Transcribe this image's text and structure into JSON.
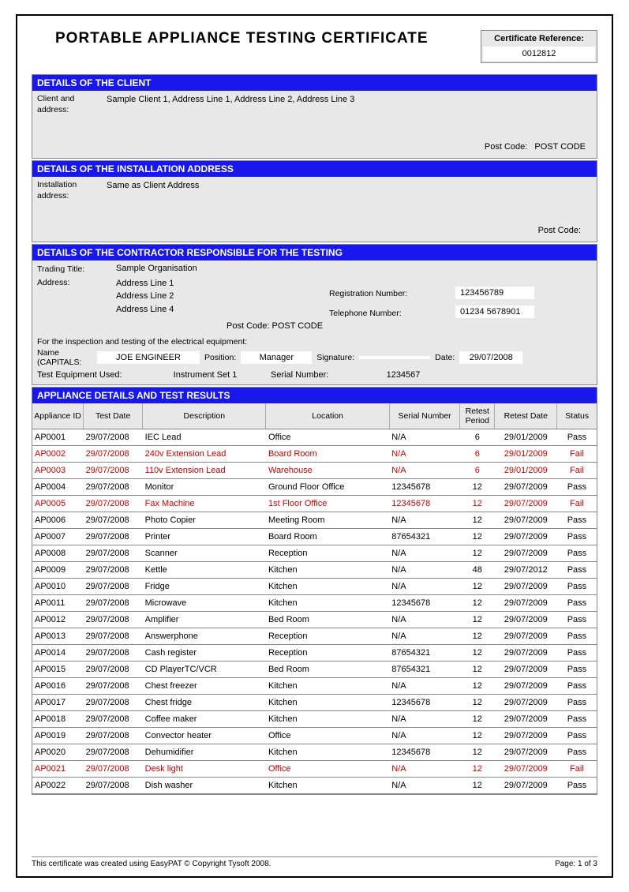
{
  "title": "PORTABLE APPLIANCE TESTING CERTIFICATE",
  "cert_ref": {
    "label": "Certificate Reference:",
    "value": "0012812"
  },
  "sections": {
    "client": {
      "title": "DETAILS OF THE CLIENT",
      "label": "Client and address:",
      "value": "Sample Client 1, Address Line 1, Address Line 2, Address Line 3",
      "postcode_label": "Post Code:",
      "postcode_value": "POST CODE"
    },
    "install": {
      "title": "DETAILS OF THE INSTALLATION ADDRESS",
      "label": "Installation address:",
      "value": "Same as Client Address",
      "postcode_label": "Post Code:",
      "postcode_value": ""
    },
    "contractor": {
      "title": "DETAILS OF THE CONTRACTOR RESPONSIBLE FOR THE TESTING",
      "trading_label": "Trading Title:",
      "trading_value": "Sample Organisation",
      "address_label": "Address:",
      "addr1": "Address Line 1",
      "addr2": "Address Line 2",
      "addr3": "Address Line 4",
      "postcode_label": "Post Code:",
      "postcode_value": "POST CODE",
      "reg_label": "Registration Number:",
      "reg_value": "123456789",
      "tel_label": "Telephone Number:",
      "tel_value": "01234 5678901",
      "insp_text": "For the inspection and testing of the electrical equipment:",
      "name_label": "Name (CAPITALS:",
      "name_value": "JOE ENGINEER",
      "position_label": "Position:",
      "position_value": "Manager",
      "signature_label": "Signature:",
      "signature_value": "",
      "date_label": "Date:",
      "date_value": "29/07/2008",
      "equip_label": "Test Equipment Used:",
      "equip_value": "Instrument Set 1",
      "serial_label": "Serial Number:",
      "serial_value": "1234567"
    },
    "results": {
      "title": "APPLIANCE DETAILS AND TEST RESULTS",
      "columns": [
        "Appliance ID",
        "Test Date",
        "Description",
        "Location",
        "Serial Number",
        "Retest Period",
        "Retest Date",
        "Status"
      ],
      "rows": [
        {
          "id": "AP0001",
          "date": "29/07/2008",
          "desc": "IEC Lead",
          "loc": "Office",
          "serial": "N/A",
          "retest": "6",
          "rdate": "29/01/2009",
          "status": "Pass",
          "fail": false
        },
        {
          "id": "AP0002",
          "date": "29/07/2008",
          "desc": "240v Extension Lead",
          "loc": "Board Room",
          "serial": "N/A",
          "retest": "6",
          "rdate": "29/01/2009",
          "status": "Fail",
          "fail": true
        },
        {
          "id": "AP0003",
          "date": "29/07/2008",
          "desc": "110v Extension Lead",
          "loc": "Warehouse",
          "serial": "N/A",
          "retest": "6",
          "rdate": "29/01/2009",
          "status": "Fail",
          "fail": true
        },
        {
          "id": "AP0004",
          "date": "29/07/2008",
          "desc": "Monitor",
          "loc": "Ground Floor Office",
          "serial": "12345678",
          "retest": "12",
          "rdate": "29/07/2009",
          "status": "Pass",
          "fail": false
        },
        {
          "id": "AP0005",
          "date": "29/07/2008",
          "desc": "Fax Machine",
          "loc": "1st Floor Office",
          "serial": "12345678",
          "retest": "12",
          "rdate": "29/07/2009",
          "status": "Fail",
          "fail": true
        },
        {
          "id": "AP0006",
          "date": "29/07/2008",
          "desc": "Photo Copier",
          "loc": "Meeting Room",
          "serial": "N/A",
          "retest": "12",
          "rdate": "29/07/2009",
          "status": "Pass",
          "fail": false
        },
        {
          "id": "AP0007",
          "date": "29/07/2008",
          "desc": "Printer",
          "loc": "Board Room",
          "serial": "87654321",
          "retest": "12",
          "rdate": "29/07/2009",
          "status": "Pass",
          "fail": false
        },
        {
          "id": "AP0008",
          "date": "29/07/2008",
          "desc": "Scanner",
          "loc": "Reception",
          "serial": "N/A",
          "retest": "12",
          "rdate": "29/07/2009",
          "status": "Pass",
          "fail": false
        },
        {
          "id": "AP0009",
          "date": "29/07/2008",
          "desc": "Kettle",
          "loc": "Kitchen",
          "serial": "N/A",
          "retest": "48",
          "rdate": "29/07/2012",
          "status": "Pass",
          "fail": false
        },
        {
          "id": "AP0010",
          "date": "29/07/2008",
          "desc": "Fridge",
          "loc": "Kitchen",
          "serial": "N/A",
          "retest": "12",
          "rdate": "29/07/2009",
          "status": "Pass",
          "fail": false
        },
        {
          "id": "AP0011",
          "date": "29/07/2008",
          "desc": "Microwave",
          "loc": "Kitchen",
          "serial": "12345678",
          "retest": "12",
          "rdate": "29/07/2009",
          "status": "Pass",
          "fail": false
        },
        {
          "id": "AP0012",
          "date": "29/07/2008",
          "desc": "Amplifier",
          "loc": "Bed Room",
          "serial": "N/A",
          "retest": "12",
          "rdate": "29/07/2009",
          "status": "Pass",
          "fail": false
        },
        {
          "id": "AP0013",
          "date": "29/07/2008",
          "desc": "Answerphone",
          "loc": "Reception",
          "serial": "N/A",
          "retest": "12",
          "rdate": "29/07/2009",
          "status": "Pass",
          "fail": false
        },
        {
          "id": "AP0014",
          "date": "29/07/2008",
          "desc": "Cash register",
          "loc": "Reception",
          "serial": "87654321",
          "retest": "12",
          "rdate": "29/07/2009",
          "status": "Pass",
          "fail": false
        },
        {
          "id": "AP0015",
          "date": "29/07/2008",
          "desc": "CD PlayerTC/VCR",
          "loc": "Bed Room",
          "serial": "87654321",
          "retest": "12",
          "rdate": "29/07/2009",
          "status": "Pass",
          "fail": false
        },
        {
          "id": "AP0016",
          "date": "29/07/2008",
          "desc": "Chest freezer",
          "loc": "Kitchen",
          "serial": "N/A",
          "retest": "12",
          "rdate": "29/07/2009",
          "status": "Pass",
          "fail": false
        },
        {
          "id": "AP0017",
          "date": "29/07/2008",
          "desc": "Chest fridge",
          "loc": "Kitchen",
          "serial": "12345678",
          "retest": "12",
          "rdate": "29/07/2009",
          "status": "Pass",
          "fail": false
        },
        {
          "id": "AP0018",
          "date": "29/07/2008",
          "desc": "Coffee maker",
          "loc": "Kitchen",
          "serial": "N/A",
          "retest": "12",
          "rdate": "29/07/2009",
          "status": "Pass",
          "fail": false
        },
        {
          "id": "AP0019",
          "date": "29/07/2008",
          "desc": "Convector heater",
          "loc": "Office",
          "serial": "N/A",
          "retest": "12",
          "rdate": "29/07/2009",
          "status": "Pass",
          "fail": false
        },
        {
          "id": "AP0020",
          "date": "29/07/2008",
          "desc": "Dehumidifier",
          "loc": "Kitchen",
          "serial": "12345678",
          "retest": "12",
          "rdate": "29/07/2009",
          "status": "Pass",
          "fail": false
        },
        {
          "id": "AP0021",
          "date": "29/07/2008",
          "desc": "Desk light",
          "loc": "Office",
          "serial": "N/A",
          "retest": "12",
          "rdate": "29/07/2009",
          "status": "Fail",
          "fail": true
        },
        {
          "id": "AP0022",
          "date": "29/07/2008",
          "desc": "Dish washer",
          "loc": "Kitchen",
          "serial": "N/A",
          "retest": "12",
          "rdate": "29/07/2009",
          "status": "Pass",
          "fail": false
        }
      ]
    }
  },
  "footer": {
    "left": "This certificate was created using EasyPAT © Copyright Tysoft 2008.",
    "right": "Page: 1 of 3"
  },
  "colors": {
    "section_header_bg": "#1818ee",
    "section_header_fg": "#ffffff",
    "panel_bg": "#e8e8e8",
    "fail_color": "#cc0000",
    "border_color": "#888888"
  }
}
